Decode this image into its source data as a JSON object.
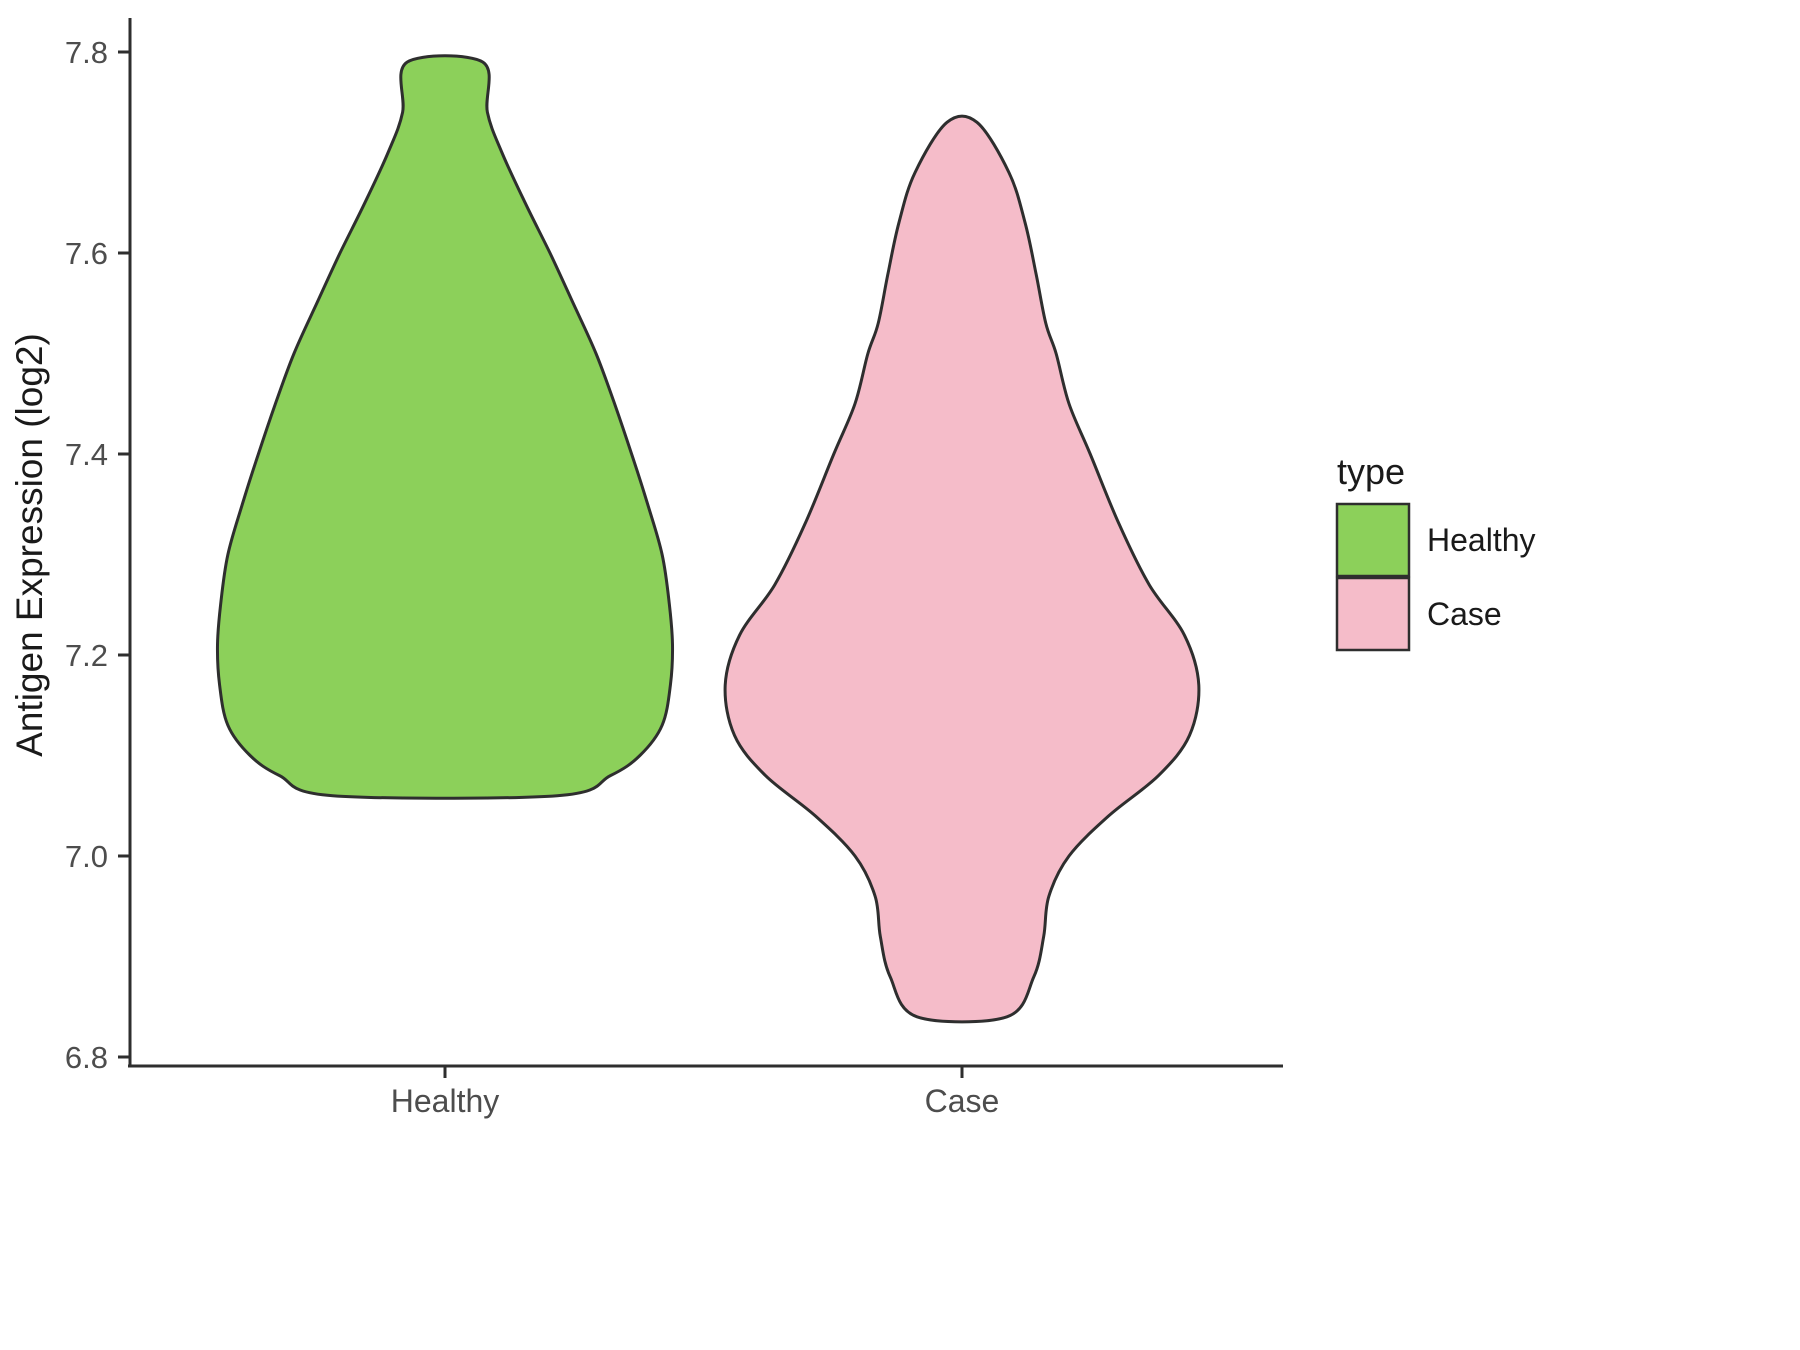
{
  "chart_data": {
    "type": "violin",
    "title": "",
    "xlabel": "",
    "ylabel": "Antigen Expression (log2)",
    "ylim": [
      6.8,
      7.8
    ],
    "yticks": [
      6.8,
      7.0,
      7.2,
      7.4,
      7.6,
      7.8
    ],
    "ytick_labels": [
      "6.8",
      "7.0",
      "7.2",
      "7.4",
      "7.6",
      "7.8"
    ],
    "categories": [
      "Healthy",
      "Case"
    ],
    "grid": false,
    "legend_position": "right",
    "legend": {
      "title": "type",
      "entries": [
        {
          "label": "Healthy",
          "color": "#8CD05A"
        },
        {
          "label": "Case",
          "color": "#F5BCC9"
        }
      ]
    },
    "series": [
      {
        "name": "Healthy",
        "x": 1,
        "fill": "#8CD05A",
        "outline": "#2E2E2E",
        "y_min": 7.06,
        "y_max": 7.79,
        "profile": [
          [
            7.79,
            0.073
          ],
          [
            7.74,
            0.082
          ],
          [
            7.7,
            0.11
          ],
          [
            7.65,
            0.155
          ],
          [
            7.6,
            0.203
          ],
          [
            7.55,
            0.248
          ],
          [
            7.5,
            0.292
          ],
          [
            7.45,
            0.328
          ],
          [
            7.4,
            0.361
          ],
          [
            7.35,
            0.392
          ],
          [
            7.3,
            0.42
          ],
          [
            7.25,
            0.434
          ],
          [
            7.21,
            0.44
          ],
          [
            7.17,
            0.436
          ],
          [
            7.13,
            0.42
          ],
          [
            7.1,
            0.377
          ],
          [
            7.08,
            0.32
          ],
          [
            7.06,
            0.217
          ]
        ]
      },
      {
        "name": "Case",
        "x": 2,
        "fill": "#F5BCC9",
        "outline": "#2E2E2E",
        "y_min": 6.84,
        "y_max": 7.73,
        "profile": [
          [
            7.73,
            0.029
          ],
          [
            7.68,
            0.091
          ],
          [
            7.63,
            0.122
          ],
          [
            7.58,
            0.143
          ],
          [
            7.53,
            0.162
          ],
          [
            7.5,
            0.182
          ],
          [
            7.45,
            0.207
          ],
          [
            7.4,
            0.248
          ],
          [
            7.33,
            0.304
          ],
          [
            7.27,
            0.362
          ],
          [
            7.22,
            0.43
          ],
          [
            7.17,
            0.458
          ],
          [
            7.12,
            0.44
          ],
          [
            7.08,
            0.38
          ],
          [
            7.04,
            0.284
          ],
          [
            7.0,
            0.207
          ],
          [
            6.96,
            0.168
          ],
          [
            6.92,
            0.158
          ],
          [
            6.88,
            0.139
          ],
          [
            6.84,
            0.087
          ]
        ]
      }
    ],
    "axis": {
      "line_color": "#2E2E2E",
      "tick_color": "#2E2E2E",
      "tick_label_color": "#4D4D4D",
      "title_color": "#1A1A1A"
    }
  }
}
